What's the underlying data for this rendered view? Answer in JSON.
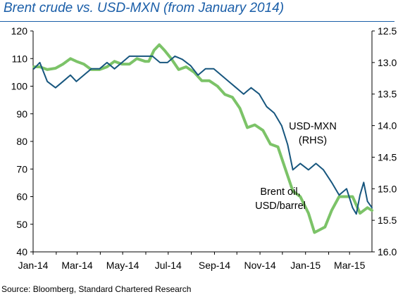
{
  "title": "Brent crude vs. USD-MXN (from January 2014)",
  "source": "Source: Bloomberg, Standard Chartered Research",
  "chart_data": {
    "type": "line",
    "title": "Brent crude vs. USD-MXN (from January 2014)",
    "x_ticks": [
      "Jan-14",
      "Mar-14",
      "May-14",
      "Jul-14",
      "Sep-14",
      "Nov-14",
      "Jan-15",
      "Mar-15"
    ],
    "xlim": [
      "2014-01-01",
      "2015-03-31"
    ],
    "ylim_left": [
      40,
      120
    ],
    "yticks_left": [
      "40",
      "50",
      "60",
      "70",
      "80",
      "90",
      "100",
      "110",
      "120"
    ],
    "ylim_right": [
      12.5,
      16.0
    ],
    "right_axis_inverted": true,
    "yticks_right": [
      "12.5",
      "13.0",
      "13.5",
      "14.0",
      "14.5",
      "15.0",
      "15.5",
      "16.0"
    ],
    "grid": false,
    "annotations": [
      {
        "lines": [
          "USD-MXN",
          "(RHS)"
        ],
        "series": "USD-MXN"
      },
      {
        "lines": [
          "Brent oil,",
          "USD/barrel"
        ],
        "series": "Brent oil"
      }
    ],
    "series": [
      {
        "name": "Brent oil, USD/barrel",
        "axis": "left",
        "color": "#7cc368",
        "points": [
          [
            "2014-01-02",
            107
          ],
          [
            "2014-01-10",
            107
          ],
          [
            "2014-01-20",
            106
          ],
          [
            "2014-01-31",
            106.5
          ],
          [
            "2014-02-10",
            108
          ],
          [
            "2014-02-20",
            110
          ],
          [
            "2014-02-28",
            109
          ],
          [
            "2014-03-10",
            108
          ],
          [
            "2014-03-20",
            106
          ],
          [
            "2014-03-31",
            106
          ],
          [
            "2014-04-10",
            107
          ],
          [
            "2014-04-20",
            109
          ],
          [
            "2014-04-30",
            108
          ],
          [
            "2014-05-10",
            108
          ],
          [
            "2014-05-20",
            110
          ],
          [
            "2014-05-31",
            109
          ],
          [
            "2014-06-05",
            109
          ],
          [
            "2014-06-12",
            113
          ],
          [
            "2014-06-19",
            115
          ],
          [
            "2014-06-26",
            113
          ],
          [
            "2014-07-05",
            110
          ],
          [
            "2014-07-15",
            106
          ],
          [
            "2014-07-25",
            107
          ],
          [
            "2014-08-05",
            105
          ],
          [
            "2014-08-15",
            102
          ],
          [
            "2014-08-25",
            102
          ],
          [
            "2014-09-05",
            100
          ],
          [
            "2014-09-15",
            97
          ],
          [
            "2014-09-25",
            96
          ],
          [
            "2014-10-05",
            92
          ],
          [
            "2014-10-15",
            85
          ],
          [
            "2014-10-25",
            86
          ],
          [
            "2014-11-05",
            84
          ],
          [
            "2014-11-15",
            79
          ],
          [
            "2014-11-25",
            78
          ],
          [
            "2014-12-05",
            70
          ],
          [
            "2014-12-15",
            62
          ],
          [
            "2014-12-25",
            60
          ],
          [
            "2015-01-05",
            54
          ],
          [
            "2015-01-13",
            47
          ],
          [
            "2015-01-20",
            48
          ],
          [
            "2015-01-27",
            49
          ],
          [
            "2015-02-05",
            55
          ],
          [
            "2015-02-15",
            60
          ],
          [
            "2015-02-25",
            60
          ],
          [
            "2015-03-05",
            60
          ],
          [
            "2015-03-15",
            54
          ],
          [
            "2015-03-25",
            56
          ],
          [
            "2015-03-31",
            55
          ]
        ]
      },
      {
        "name": "USD-MXN (RHS)",
        "axis": "right",
        "color": "#17567e",
        "points": [
          [
            "2014-01-02",
            13.1
          ],
          [
            "2014-01-10",
            13.0
          ],
          [
            "2014-01-20",
            13.3
          ],
          [
            "2014-01-31",
            13.4
          ],
          [
            "2014-02-10",
            13.3
          ],
          [
            "2014-02-20",
            13.2
          ],
          [
            "2014-02-28",
            13.3
          ],
          [
            "2014-03-10",
            13.2
          ],
          [
            "2014-03-20",
            13.1
          ],
          [
            "2014-03-31",
            13.1
          ],
          [
            "2014-04-10",
            13.0
          ],
          [
            "2014-04-20",
            13.1
          ],
          [
            "2014-04-30",
            13.0
          ],
          [
            "2014-05-10",
            12.9
          ],
          [
            "2014-05-20",
            12.9
          ],
          [
            "2014-05-31",
            12.9
          ],
          [
            "2014-06-10",
            12.9
          ],
          [
            "2014-06-20",
            13.0
          ],
          [
            "2014-06-30",
            13.0
          ],
          [
            "2014-07-10",
            12.9
          ],
          [
            "2014-07-20",
            12.95
          ],
          [
            "2014-07-31",
            13.05
          ],
          [
            "2014-08-10",
            13.2
          ],
          [
            "2014-08-20",
            13.1
          ],
          [
            "2014-08-31",
            13.1
          ],
          [
            "2014-09-10",
            13.2
          ],
          [
            "2014-09-20",
            13.3
          ],
          [
            "2014-09-30",
            13.4
          ],
          [
            "2014-10-10",
            13.5
          ],
          [
            "2014-10-20",
            13.4
          ],
          [
            "2014-10-31",
            13.5
          ],
          [
            "2014-11-10",
            13.7
          ],
          [
            "2014-11-20",
            13.8
          ],
          [
            "2014-11-30",
            14.0
          ],
          [
            "2014-12-08",
            14.3
          ],
          [
            "2014-12-15",
            14.7
          ],
          [
            "2014-12-25",
            14.6
          ],
          [
            "2015-01-05",
            14.7
          ],
          [
            "2015-01-15",
            14.6
          ],
          [
            "2015-01-25",
            14.7
          ],
          [
            "2015-02-05",
            14.9
          ],
          [
            "2015-02-15",
            15.1
          ],
          [
            "2015-02-25",
            15.0
          ],
          [
            "2015-03-05",
            15.3
          ],
          [
            "2015-03-10",
            15.4
          ],
          [
            "2015-03-15",
            15.1
          ],
          [
            "2015-03-20",
            14.9
          ],
          [
            "2015-03-25",
            15.2
          ],
          [
            "2015-03-31",
            15.3
          ]
        ]
      }
    ]
  }
}
